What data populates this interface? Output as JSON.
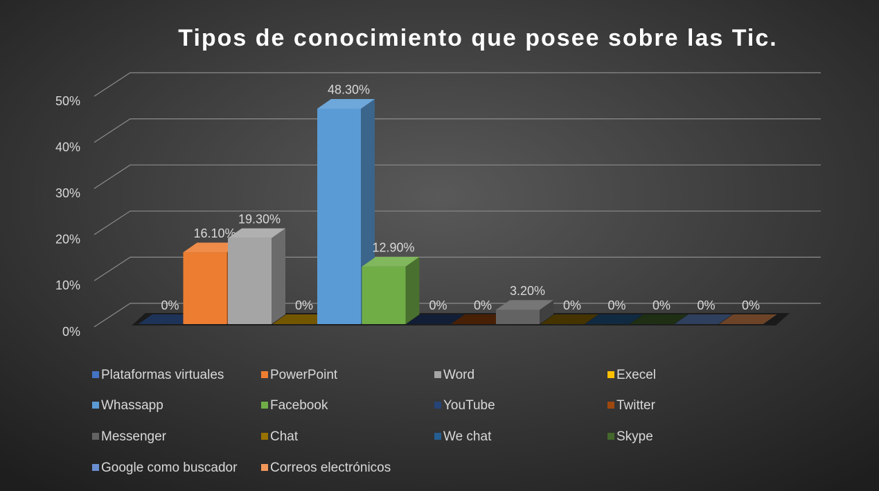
{
  "chart_data": {
    "type": "bar3d",
    "title": "Tipos de conocimiento que posee sobre las Tic.",
    "ylim": [
      0,
      50
    ],
    "yticks": [
      {
        "value": 0,
        "label": "0%"
      },
      {
        "value": 10,
        "label": "10%"
      },
      {
        "value": 20,
        "label": "20%"
      },
      {
        "value": 30,
        "label": "30%"
      },
      {
        "value": 40,
        "label": "40%"
      },
      {
        "value": 50,
        "label": "50%"
      }
    ],
    "grid": true,
    "legend": "bottom",
    "series": [
      {
        "name": "Plataformas virtuales",
        "color": "#4472c4",
        "values": [
          0
        ],
        "value_labels": [
          "0%"
        ]
      },
      {
        "name": "PowerPoint",
        "color": "#ed7d31",
        "values": [
          16.1
        ],
        "value_labels": [
          "16.10%"
        ]
      },
      {
        "name": "Word",
        "color": "#a5a5a5",
        "values": [
          19.3
        ],
        "value_labels": [
          "19.30%"
        ]
      },
      {
        "name": "Execel",
        "color": "#ffc000",
        "values": [
          0
        ],
        "value_labels": [
          "0%"
        ]
      },
      {
        "name": "Whassapp",
        "color": "#5b9bd5",
        "values": [
          48.3
        ],
        "value_labels": [
          "48.30%"
        ]
      },
      {
        "name": "Facebook",
        "color": "#70ad47",
        "values": [
          12.9
        ],
        "value_labels": [
          "12.90%"
        ]
      },
      {
        "name": "YouTube",
        "color": "#264478",
        "values": [
          0
        ],
        "value_labels": [
          "0%"
        ]
      },
      {
        "name": "Twitter",
        "color": "#9e480e",
        "values": [
          0
        ],
        "value_labels": [
          "0%"
        ]
      },
      {
        "name": "Messenger",
        "color": "#636363",
        "values": [
          3.2
        ],
        "value_labels": [
          "3.20%"
        ]
      },
      {
        "name": "Chat",
        "color": "#997300",
        "values": [
          0
        ],
        "value_labels": [
          "0%"
        ]
      },
      {
        "name": "We chat",
        "color": "#255e91",
        "values": [
          0
        ],
        "value_labels": [
          "0%"
        ]
      },
      {
        "name": "Skype",
        "color": "#43682b",
        "values": [
          0
        ],
        "value_labels": [
          "0%"
        ]
      },
      {
        "name": "Google como buscador",
        "color": "#698ed0",
        "values": [
          0
        ],
        "value_labels": [
          "0%"
        ]
      },
      {
        "name": "Correos electrónicos",
        "color": "#f1975a",
        "values": [
          0
        ],
        "value_labels": [
          "0%"
        ]
      }
    ]
  }
}
